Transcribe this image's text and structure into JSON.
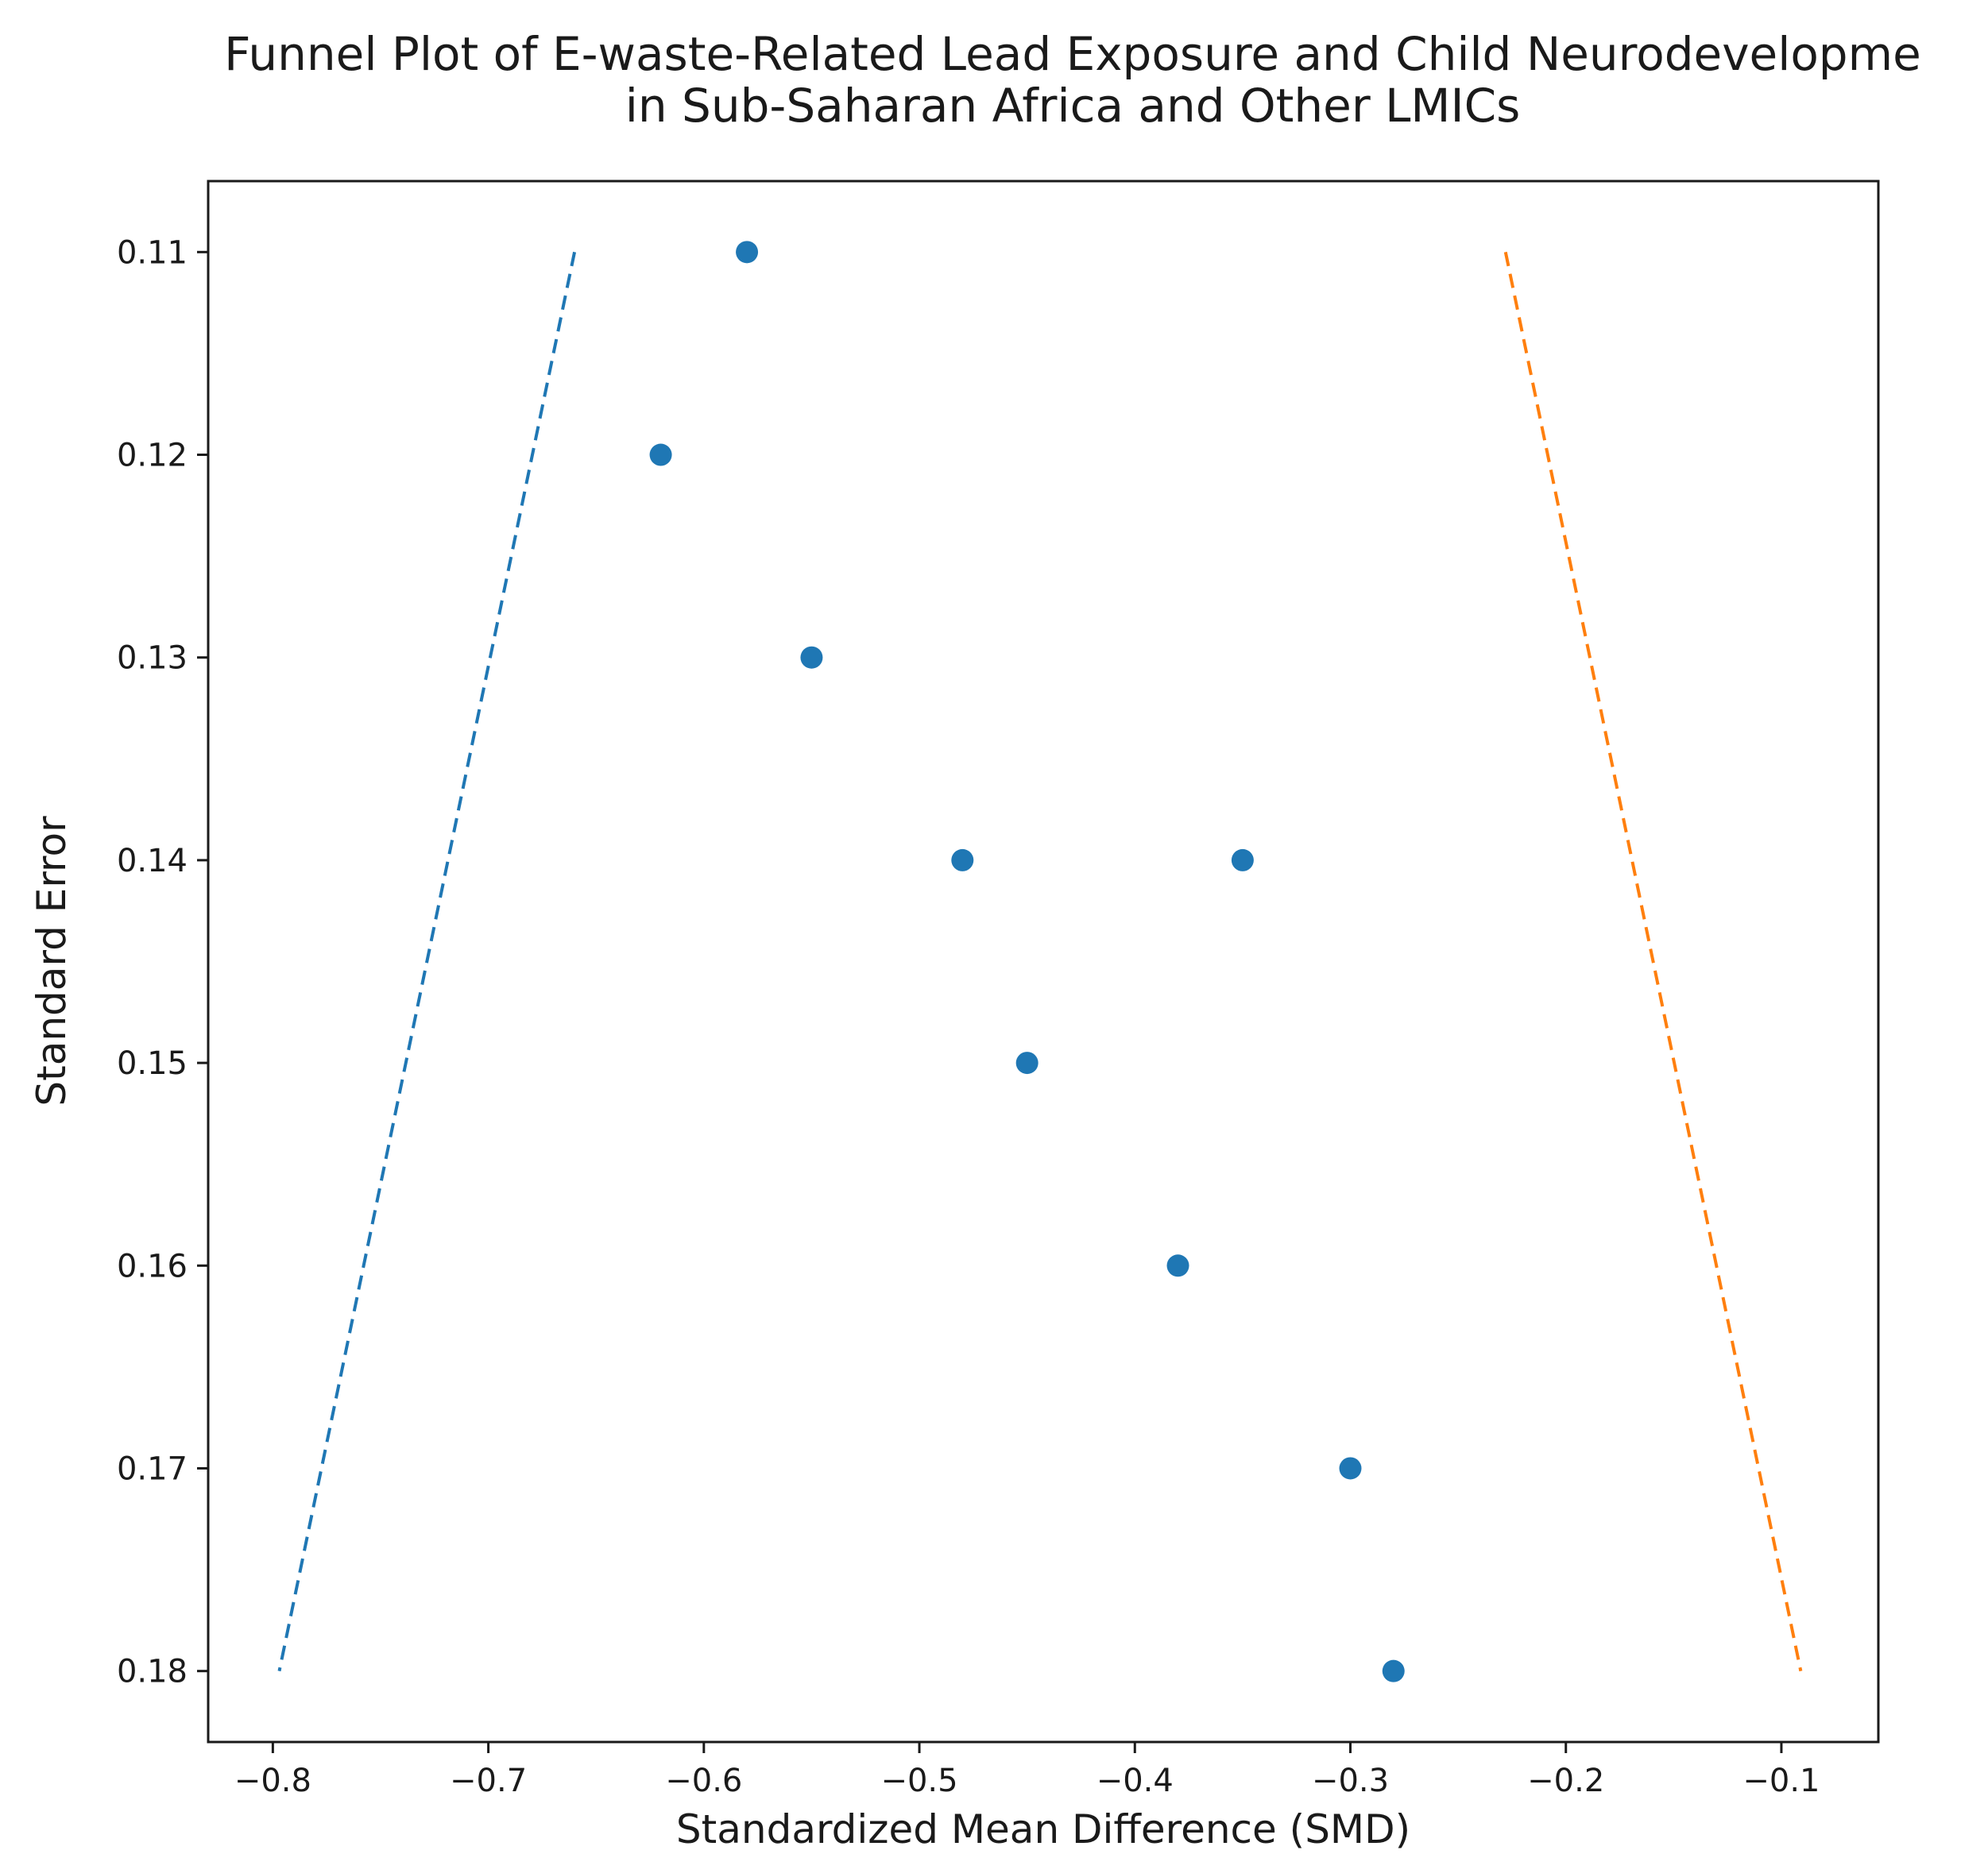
{
  "chart_data": {
    "type": "scatter",
    "title_lines": [
      "Funnel Plot of E-waste-Related Lead Exposure and Child Neurodevelopme",
      "in Sub-Saharan Africa and Other LMICs"
    ],
    "xlabel": "Standardized Mean Difference (SMD)",
    "ylabel": "Standard Error",
    "xlim": [
      -0.83,
      -0.055
    ],
    "ylim": [
      0.1065,
      0.1835
    ],
    "y_inverted": true,
    "x_ticks": [
      -0.8,
      -0.7,
      -0.6,
      -0.5,
      -0.4,
      -0.3,
      -0.2,
      -0.1
    ],
    "x_tick_labels": [
      "−0.8",
      "−0.7",
      "−0.6",
      "−0.5",
      "−0.4",
      "−0.3",
      "−0.2",
      "−0.1"
    ],
    "y_ticks": [
      0.11,
      0.12,
      0.13,
      0.14,
      0.15,
      0.16,
      0.17,
      0.18
    ],
    "y_tick_labels": [
      "0.11",
      "0.12",
      "0.13",
      "0.14",
      "0.15",
      "0.16",
      "0.17",
      "0.18"
    ],
    "grid": false,
    "points": [
      {
        "x": -0.58,
        "y": 0.11
      },
      {
        "x": -0.62,
        "y": 0.12
      },
      {
        "x": -0.55,
        "y": 0.13
      },
      {
        "x": -0.48,
        "y": 0.14
      },
      {
        "x": -0.35,
        "y": 0.14
      },
      {
        "x": -0.45,
        "y": 0.15
      },
      {
        "x": -0.38,
        "y": 0.16
      },
      {
        "x": -0.3,
        "y": 0.17
      },
      {
        "x": -0.28,
        "y": 0.18
      }
    ],
    "point_color": "#1f77b4",
    "lines": [
      {
        "x": [
          -0.66,
          -0.797
        ],
        "y": [
          0.11,
          0.18
        ],
        "color": "#1f77b4",
        "style": "dashed"
      },
      {
        "x": [
          -0.228,
          -0.091
        ],
        "y": [
          0.11,
          0.18
        ],
        "color": "#ff7f0e",
        "style": "dashed"
      }
    ]
  }
}
